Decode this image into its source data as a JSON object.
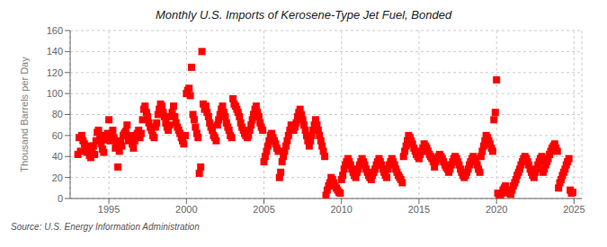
{
  "chart_data": {
    "type": "scatter",
    "title": "Monthly U.S. Imports of Kerosene-Type Jet Fuel, Bonded",
    "ylabel": "Thousand Barrels per Day",
    "annotations": [
      "Source: U.S. Energy Information Administration"
    ],
    "ylim": [
      0,
      160
    ],
    "yticks": [
      0,
      20,
      40,
      60,
      80,
      100,
      120,
      140,
      160
    ],
    "xlim": [
      1992.5,
      2025.5
    ],
    "xticks": [
      1995,
      2000,
      2005,
      2010,
      2015,
      2020,
      2025
    ],
    "grid": true,
    "color": "#ff0000",
    "marker": "square",
    "x": [
      1993.0,
      1993.08,
      1993.17,
      1993.25,
      1993.33,
      1993.42,
      1993.5,
      1993.58,
      1993.67,
      1993.75,
      1993.83,
      1993.92,
      1994.0,
      1994.08,
      1994.17,
      1994.25,
      1994.33,
      1994.42,
      1994.5,
      1994.58,
      1994.67,
      1994.75,
      1994.83,
      1994.92,
      1995.0,
      1995.08,
      1995.17,
      1995.25,
      1995.33,
      1995.42,
      1995.5,
      1995.58,
      1995.67,
      1995.75,
      1995.83,
      1995.92,
      1996.0,
      1996.08,
      1996.17,
      1996.25,
      1996.33,
      1996.42,
      1996.5,
      1996.58,
      1996.67,
      1996.75,
      1996.83,
      1996.92,
      1997.0,
      1997.08,
      1997.17,
      1997.25,
      1997.33,
      1997.42,
      1997.5,
      1997.58,
      1997.67,
      1997.75,
      1997.83,
      1997.92,
      1998.0,
      1998.08,
      1998.17,
      1998.25,
      1998.33,
      1998.42,
      1998.5,
      1998.58,
      1998.67,
      1998.75,
      1998.83,
      1998.92,
      1999.0,
      1999.08,
      1999.17,
      1999.25,
      1999.33,
      1999.42,
      1999.5,
      1999.58,
      1999.67,
      1999.75,
      1999.83,
      1999.92,
      2000.0,
      2000.08,
      2000.17,
      2000.25,
      2000.33,
      2000.42,
      2000.5,
      2000.58,
      2000.67,
      2000.75,
      2000.83,
      2000.92,
      2001.0,
      2001.08,
      2001.17,
      2001.25,
      2001.33,
      2001.42,
      2001.5,
      2001.58,
      2001.67,
      2001.75,
      2001.83,
      2001.92,
      2002.0,
      2002.08,
      2002.17,
      2002.25,
      2002.33,
      2002.42,
      2002.5,
      2002.58,
      2002.67,
      2002.75,
      2002.83,
      2002.92,
      2003.0,
      2003.08,
      2003.17,
      2003.25,
      2003.33,
      2003.42,
      2003.5,
      2003.58,
      2003.67,
      2003.75,
      2003.83,
      2003.92,
      2004.0,
      2004.08,
      2004.17,
      2004.25,
      2004.33,
      2004.42,
      2004.5,
      2004.58,
      2004.67,
      2004.75,
      2004.83,
      2004.92,
      2005.0,
      2005.08,
      2005.17,
      2005.25,
      2005.33,
      2005.42,
      2005.5,
      2005.58,
      2005.67,
      2005.75,
      2005.83,
      2005.92,
      2006.0,
      2006.08,
      2006.17,
      2006.25,
      2006.33,
      2006.42,
      2006.5,
      2006.58,
      2006.67,
      2006.75,
      2006.83,
      2006.92,
      2007.0,
      2007.08,
      2007.17,
      2007.25,
      2007.33,
      2007.42,
      2007.5,
      2007.58,
      2007.67,
      2007.75,
      2007.83,
      2007.92,
      2008.0,
      2008.08,
      2008.17,
      2008.25,
      2008.33,
      2008.42,
      2008.5,
      2008.58,
      2008.67,
      2008.75,
      2008.83,
      2008.92,
      2009.0,
      2009.08,
      2009.17,
      2009.25,
      2009.33,
      2009.42,
      2009.5,
      2009.58,
      2009.67,
      2009.75,
      2009.83,
      2009.92,
      2010.0,
      2010.08,
      2010.17,
      2010.25,
      2010.33,
      2010.42,
      2010.5,
      2010.58,
      2010.67,
      2010.75,
      2010.83,
      2010.92,
      2011.0,
      2011.08,
      2011.17,
      2011.25,
      2011.33,
      2011.42,
      2011.5,
      2011.58,
      2011.67,
      2011.75,
      2011.83,
      2011.92,
      2012.0,
      2012.08,
      2012.17,
      2012.25,
      2012.33,
      2012.42,
      2012.5,
      2012.58,
      2012.67,
      2012.75,
      2012.83,
      2012.92,
      2013.0,
      2013.08,
      2013.17,
      2013.25,
      2013.33,
      2013.42,
      2013.5,
      2013.58,
      2013.67,
      2013.75,
      2013.83,
      2013.92,
      2014.0,
      2014.08,
      2014.17,
      2014.25,
      2014.33,
      2014.42,
      2014.5,
      2014.58,
      2014.67,
      2014.75,
      2014.83,
      2014.92,
      2015.0,
      2015.08,
      2015.17,
      2015.25,
      2015.33,
      2015.42,
      2015.5,
      2015.58,
      2015.67,
      2015.75,
      2015.83,
      2015.92,
      2016.0,
      2016.08,
      2016.17,
      2016.25,
      2016.33,
      2016.42,
      2016.5,
      2016.58,
      2016.67,
      2016.75,
      2016.83,
      2016.92,
      2017.0,
      2017.08,
      2017.17,
      2017.25,
      2017.33,
      2017.42,
      2017.5,
      2017.58,
      2017.67,
      2017.75,
      2017.83,
      2017.92,
      2018.0,
      2018.08,
      2018.17,
      2018.25,
      2018.33,
      2018.42,
      2018.5,
      2018.58,
      2018.67,
      2018.75,
      2018.83,
      2018.92,
      2019.0,
      2019.08,
      2019.17,
      2019.25,
      2019.33,
      2019.42,
      2019.5,
      2019.58,
      2019.67,
      2019.75,
      2019.83,
      2019.92,
      2020.0,
      2020.08,
      2020.17,
      2020.25,
      2020.33,
      2020.42,
      2020.5,
      2020.58,
      2020.67,
      2020.75,
      2020.83,
      2020.92,
      2021.0,
      2021.08,
      2021.17,
      2021.25,
      2021.33,
      2021.42,
      2021.5,
      2021.58,
      2021.67,
      2021.75,
      2021.83,
      2021.92,
      2022.0,
      2022.08,
      2022.17,
      2022.25,
      2022.33,
      2022.42,
      2022.5,
      2022.58,
      2022.67,
      2022.75,
      2022.83,
      2022.92,
      2023.0,
      2023.08,
      2023.17,
      2023.25,
      2023.33,
      2023.42,
      2023.5,
      2023.58,
      2023.67,
      2023.75,
      2023.83,
      2023.92,
      2024.0,
      2024.08,
      2024.17,
      2024.25,
      2024.33,
      2024.42,
      2024.5,
      2024.58,
      2024.67,
      2024.75,
      2024.83,
      2024.92
    ],
    "values": [
      42,
      58,
      45,
      60,
      55,
      52,
      48,
      44,
      50,
      41,
      39,
      46,
      50,
      42,
      55,
      63,
      65,
      58,
      52,
      47,
      44,
      60,
      56,
      62,
      75,
      55,
      60,
      65,
      58,
      48,
      52,
      30,
      45,
      55,
      50,
      60,
      62,
      64,
      70,
      55,
      60,
      58,
      52,
      48,
      55,
      60,
      62,
      65,
      58,
      62,
      75,
      85,
      88,
      82,
      78,
      72,
      68,
      65,
      60,
      58,
      68,
      72,
      80,
      85,
      90,
      88,
      82,
      78,
      72,
      68,
      65,
      70,
      78,
      82,
      88,
      78,
      72,
      68,
      65,
      62,
      58,
      55,
      52,
      60,
      100,
      103,
      105,
      98,
      125,
      80,
      75,
      68,
      62,
      58,
      24,
      30,
      140,
      90,
      85,
      88,
      82,
      78,
      72,
      68,
      65,
      60,
      58,
      55,
      70,
      75,
      80,
      85,
      88,
      82,
      78,
      72,
      68,
      65,
      60,
      58,
      95,
      90,
      88,
      85,
      82,
      78,
      72,
      68,
      65,
      62,
      60,
      58,
      60,
      65,
      70,
      75,
      80,
      85,
      88,
      82,
      78,
      72,
      68,
      65,
      35,
      40,
      45,
      50,
      55,
      60,
      62,
      58,
      55,
      52,
      48,
      45,
      20,
      25,
      35,
      40,
      45,
      50,
      55,
      60,
      65,
      70,
      68,
      65,
      68,
      72,
      78,
      82,
      85,
      80,
      75,
      70,
      65,
      60,
      55,
      50,
      55,
      60,
      65,
      70,
      75,
      70,
      65,
      60,
      55,
      50,
      45,
      40,
      3,
      8,
      12,
      15,
      20,
      18,
      15,
      12,
      10,
      8,
      6,
      5,
      18,
      22,
      28,
      32,
      35,
      38,
      35,
      32,
      28,
      25,
      22,
      20,
      25,
      28,
      32,
      35,
      38,
      35,
      32,
      28,
      25,
      22,
      20,
      18,
      22,
      25,
      28,
      32,
      35,
      38,
      35,
      32,
      28,
      25,
      22,
      20,
      28,
      32,
      35,
      38,
      35,
      32,
      28,
      25,
      22,
      20,
      18,
      15,
      40,
      45,
      50,
      55,
      60,
      58,
      55,
      52,
      48,
      45,
      42,
      40,
      38,
      42,
      45,
      48,
      52,
      50,
      48,
      45,
      42,
      40,
      38,
      35,
      30,
      35,
      38,
      40,
      42,
      40,
      38,
      35,
      32,
      30,
      28,
      25,
      28,
      32,
      35,
      38,
      40,
      38,
      35,
      32,
      28,
      25,
      22,
      20,
      22,
      25,
      28,
      32,
      35,
      38,
      40,
      38,
      35,
      32,
      28,
      25,
      40,
      45,
      50,
      55,
      60,
      58,
      55,
      52,
      48,
      45,
      75,
      82,
      113,
      5,
      3,
      2,
      5,
      8,
      10,
      12,
      8,
      6,
      5,
      4,
      8,
      12,
      15,
      18,
      22,
      25,
      28,
      32,
      35,
      38,
      40,
      38,
      35,
      32,
      28,
      25,
      22,
      20,
      25,
      28,
      32,
      35,
      38,
      40,
      25,
      28,
      32,
      35,
      38,
      42,
      45,
      48,
      50,
      52,
      48,
      45,
      10,
      15,
      18,
      22,
      25,
      28,
      32,
      35,
      38,
      8,
      5,
      6
    ]
  }
}
